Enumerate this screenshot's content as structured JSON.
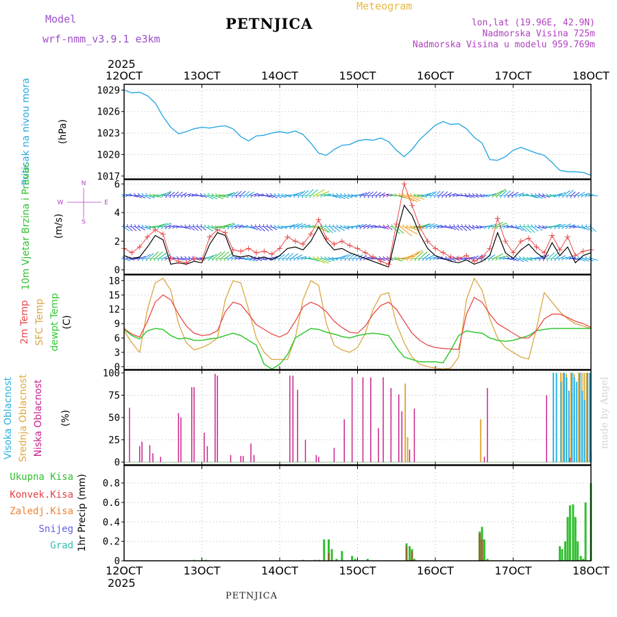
{
  "header": {
    "model_label": "Model",
    "model_name": "wrf-nmm_v3.9.1  e3km",
    "title": "PETNJICA",
    "meteogram_label": "Meteogram",
    "lonlat": "lon,lat (19.96E, 42.9N)",
    "altitude": "Nadmorska Visina 725m",
    "model_altitude": "Nadmorska Visina u modelu 959.769m"
  },
  "footer": {
    "station": "PETNJICA",
    "credit": "made by Angel"
  },
  "colors": {
    "pressure": "#2aa7e0",
    "temp": "#e84848",
    "sfc_temp": "#d9a640",
    "dewpt": "#30c830",
    "cloud_high": "#2ab0e0",
    "cloud_mid": "#e0a838",
    "cloud_low": "#c8208c",
    "precip_total": "#30c030",
    "precip_conv": "#e04040",
    "precip_freeze": "#f08030",
    "precip_snow": "#6060e0",
    "precip_hail": "#30c0b0",
    "grid": "#b0b0b0"
  },
  "chart_data": [
    {
      "type": "line",
      "name": "pressure",
      "ylabel": "Pritisak na nivou mora",
      "unit": "(hPa)",
      "ylim": [
        1016.6,
        1029.8
      ],
      "yticks": [
        1017,
        1020,
        1023,
        1026,
        1029
      ],
      "x_start_year": "2025",
      "xticks": [
        "12OCT",
        "13OCT",
        "14OCT",
        "15OCT",
        "16OCT",
        "17OCT",
        "18OCT"
      ],
      "xrange_days": [
        0,
        6
      ],
      "grid": true,
      "series": [
        {
          "name": "Pritisak na nivou mora",
          "color_key": "pressure",
          "x": [
            0,
            0.1,
            0.2,
            0.3,
            0.4,
            0.5,
            0.6,
            0.7,
            0.8,
            0.9,
            1.0,
            1.1,
            1.2,
            1.3,
            1.4,
            1.5,
            1.6,
            1.7,
            1.8,
            1.9,
            2.0,
            2.1,
            2.2,
            2.3,
            2.4,
            2.5,
            2.6,
            2.7,
            2.8,
            2.9,
            3.0,
            3.1,
            3.2,
            3.3,
            3.4,
            3.5,
            3.6,
            3.7,
            3.8,
            3.9,
            4.0,
            4.1,
            4.2,
            4.3,
            4.4,
            4.5,
            4.6,
            4.7,
            4.8,
            4.9,
            5.0,
            5.1,
            5.2,
            5.3,
            5.4,
            5.5,
            5.6,
            5.7,
            5.8,
            5.9,
            6.0
          ],
          "y": [
            1029.0,
            1028.6,
            1028.7,
            1028.2,
            1027.2,
            1025.3,
            1023.8,
            1022.9,
            1023.2,
            1023.6,
            1023.8,
            1023.7,
            1023.9,
            1024.0,
            1023.6,
            1022.5,
            1021.9,
            1022.6,
            1022.7,
            1023.0,
            1023.2,
            1023.0,
            1023.3,
            1022.8,
            1021.6,
            1020.2,
            1019.9,
            1020.7,
            1021.3,
            1021.4,
            1021.9,
            1022.1,
            1022.0,
            1022.3,
            1021.8,
            1020.6,
            1019.7,
            1020.7,
            1022.1,
            1023.1,
            1024.1,
            1024.6,
            1024.2,
            1024.3,
            1023.6,
            1022.4,
            1021.6,
            1019.3,
            1019.2,
            1019.7,
            1020.6,
            1021.0,
            1020.6,
            1020.2,
            1019.9,
            1018.9,
            1017.8,
            1017.6,
            1017.6,
            1017.5,
            1017.1
          ]
        }
      ]
    },
    {
      "type": "line",
      "name": "wind",
      "ylabel": "10m Vjetar Brzina i Pravac",
      "unit": "(m/s)",
      "compass_labels": [
        "N",
        "S",
        "W",
        "E"
      ],
      "ylim": [
        -0.3,
        6.3
      ],
      "yticks": [
        0,
        2,
        4,
        6
      ],
      "grid": true,
      "arrow_rows": [
        5.2,
        3.0,
        0.8
      ],
      "series": [
        {
          "name": "Brzina vjetra",
          "color": "#000000",
          "x": [
            0,
            0.1,
            0.2,
            0.3,
            0.4,
            0.5,
            0.6,
            0.7,
            0.8,
            0.9,
            1.0,
            1.1,
            1.2,
            1.3,
            1.4,
            1.5,
            1.6,
            1.7,
            1.8,
            1.9,
            2.0,
            2.1,
            2.2,
            2.3,
            2.4,
            2.5,
            2.6,
            2.7,
            2.8,
            2.9,
            3.0,
            3.1,
            3.2,
            3.3,
            3.4,
            3.5,
            3.6,
            3.7,
            3.8,
            3.9,
            4.0,
            4.1,
            4.2,
            4.3,
            4.4,
            4.5,
            4.6,
            4.7,
            4.8,
            4.9,
            5.0,
            5.1,
            5.2,
            5.3,
            5.4,
            5.5,
            5.6,
            5.7,
            5.8,
            5.9,
            6.0
          ],
          "y": [
            1.0,
            0.8,
            0.9,
            1.6,
            2.4,
            2.1,
            0.4,
            0.5,
            0.4,
            0.6,
            0.5,
            1.8,
            2.6,
            2.4,
            1.0,
            0.9,
            1.0,
            0.8,
            0.9,
            0.7,
            1.0,
            1.5,
            1.6,
            1.4,
            2.0,
            3.0,
            2.0,
            1.4,
            1.5,
            1.2,
            1.0,
            0.8,
            0.6,
            0.4,
            0.2,
            2.5,
            4.5,
            3.8,
            2.5,
            1.5,
            1.0,
            0.8,
            0.6,
            0.5,
            0.7,
            0.4,
            0.6,
            1.0,
            2.6,
            1.2,
            0.8,
            1.4,
            1.8,
            1.2,
            0.8,
            1.9,
            1.0,
            1.6,
            0.5,
            1.0,
            1.2
          ]
        },
        {
          "name": "Udari vjetra",
          "color": "#e84848",
          "x": [
            0,
            0.1,
            0.2,
            0.3,
            0.4,
            0.5,
            0.6,
            0.7,
            0.8,
            0.9,
            1.0,
            1.1,
            1.2,
            1.3,
            1.4,
            1.5,
            1.6,
            1.7,
            1.8,
            1.9,
            2.0,
            2.1,
            2.2,
            2.3,
            2.4,
            2.5,
            2.6,
            2.7,
            2.8,
            2.9,
            3.0,
            3.1,
            3.2,
            3.3,
            3.4,
            3.5,
            3.6,
            3.7,
            3.8,
            3.9,
            4.0,
            4.1,
            4.2,
            4.3,
            4.4,
            4.5,
            4.6,
            4.7,
            4.8,
            4.9,
            5.0,
            5.1,
            5.2,
            5.3,
            5.4,
            5.5,
            5.6,
            5.7,
            5.8,
            5.9,
            6.0
          ],
          "y": [
            1.5,
            1.2,
            1.6,
            2.3,
            2.8,
            2.5,
            0.8,
            0.6,
            0.5,
            0.8,
            0.7,
            2.3,
            2.8,
            2.6,
            1.4,
            1.3,
            1.5,
            1.2,
            1.3,
            1.1,
            1.5,
            2.3,
            2.0,
            1.8,
            2.5,
            3.5,
            2.2,
            1.8,
            2.0,
            1.7,
            1.5,
            1.2,
            0.9,
            0.6,
            0.4,
            3.2,
            6.0,
            4.5,
            3.0,
            2.0,
            1.5,
            1.2,
            0.9,
            0.8,
            1.0,
            0.6,
            0.9,
            1.5,
            3.6,
            2.0,
            1.2,
            2.0,
            2.2,
            1.6,
            1.2,
            2.4,
            1.4,
            2.3,
            1.0,
            1.3,
            1.4
          ]
        }
      ]
    },
    {
      "type": "line",
      "name": "temperature",
      "ylabel": "2m Temp / SFC Temp / dewpt Temp",
      "label_2m": "2m Temp",
      "label_sfc": "SFC Temp",
      "label_dewpt": "dewpt Temp",
      "unit": "(C)",
      "ylim": [
        -0.6,
        19.2
      ],
      "yticks": [
        0,
        3,
        6,
        9,
        12,
        15,
        18
      ],
      "grid": true,
      "series": [
        {
          "name": "2m Temp",
          "color_key": "temp",
          "x": [
            0,
            0.1,
            0.2,
            0.3,
            0.4,
            0.5,
            0.6,
            0.7,
            0.8,
            0.9,
            1.0,
            1.1,
            1.2,
            1.3,
            1.4,
            1.5,
            1.6,
            1.7,
            1.8,
            1.9,
            2.0,
            2.1,
            2.2,
            2.3,
            2.4,
            2.5,
            2.6,
            2.7,
            2.8,
            2.9,
            3.0,
            3.1,
            3.2,
            3.3,
            3.4,
            3.5,
            3.6,
            3.7,
            3.8,
            3.9,
            4.0,
            4.1,
            4.2,
            4.3,
            4.4,
            4.5,
            4.6,
            4.7,
            4.8,
            4.9,
            5.0,
            5.1,
            5.2,
            5.3,
            5.4,
            5.5,
            5.6,
            5.7,
            5.8,
            5.9,
            6.0
          ],
          "y": [
            8,
            6.8,
            6.2,
            9.5,
            13.5,
            15,
            14,
            11,
            8.5,
            7,
            6.5,
            6.7,
            7.5,
            11.5,
            13.5,
            13,
            11,
            8.8,
            7.8,
            6.8,
            6.2,
            7,
            9.5,
            12.5,
            13.5,
            12.8,
            11.5,
            9.5,
            8.2,
            7.2,
            7,
            8.5,
            11,
            12.8,
            13.5,
            12,
            9.5,
            7,
            5.5,
            4.5,
            4,
            3.8,
            3.7,
            3.6,
            11,
            14.5,
            13.5,
            11,
            9,
            8,
            7,
            6,
            6,
            7.5,
            10,
            11,
            11,
            10.3,
            9.5,
            9,
            8.2
          ]
        },
        {
          "name": "SFC Temp",
          "color_key": "sfc_temp",
          "x": [
            0,
            0.1,
            0.2,
            0.3,
            0.4,
            0.5,
            0.6,
            0.7,
            0.8,
            0.9,
            1.0,
            1.1,
            1.2,
            1.3,
            1.4,
            1.5,
            1.6,
            1.7,
            1.8,
            1.9,
            2.0,
            2.1,
            2.2,
            2.3,
            2.4,
            2.5,
            2.6,
            2.7,
            2.8,
            2.9,
            3.0,
            3.1,
            3.2,
            3.3,
            3.4,
            3.5,
            3.6,
            3.7,
            3.8,
            3.9,
            4.0,
            4.1,
            4.2,
            4.3,
            4.4,
            4.5,
            4.6,
            4.7,
            4.8,
            4.9,
            5.0,
            5.1,
            5.2,
            5.3,
            5.4,
            5.5,
            5.6,
            5.7,
            5.8,
            5.9,
            6.0
          ],
          "y": [
            7.5,
            5,
            3,
            12,
            17.5,
            18.5,
            16,
            9,
            5,
            3.5,
            4,
            4.8,
            6,
            14,
            18,
            17.5,
            12,
            6,
            3,
            1.5,
            1.5,
            1.5,
            6,
            14,
            18,
            17,
            9,
            4.5,
            3.5,
            3,
            4,
            7,
            12,
            15,
            15.5,
            9,
            5,
            2,
            0.5,
            0,
            -0.3,
            -0.5,
            -0.3,
            2,
            14,
            18.5,
            16,
            10,
            6,
            4,
            3,
            2,
            1.6,
            8,
            15.5,
            13.5,
            11.5,
            10,
            9,
            8.5,
            8
          ]
        },
        {
          "name": "dewpt Temp",
          "color_key": "dewpt",
          "x": [
            0,
            0.1,
            0.2,
            0.3,
            0.4,
            0.5,
            0.6,
            0.7,
            0.8,
            0.9,
            1.0,
            1.1,
            1.2,
            1.3,
            1.4,
            1.5,
            1.6,
            1.7,
            1.8,
            1.9,
            2.0,
            2.1,
            2.2,
            2.3,
            2.4,
            2.5,
            2.6,
            2.7,
            2.8,
            2.9,
            3.0,
            3.1,
            3.2,
            3.3,
            3.4,
            3.5,
            3.6,
            3.7,
            3.8,
            3.9,
            4.0,
            4.1,
            4.2,
            4.3,
            4.4,
            4.5,
            4.6,
            4.7,
            4.8,
            4.9,
            5.0,
            5.1,
            5.2,
            5.3,
            5.4,
            5.5,
            5.6,
            5.7,
            5.8,
            5.9,
            6.0
          ],
          "y": [
            7.8,
            6.5,
            5.8,
            7.5,
            8,
            7.8,
            6.5,
            5.8,
            6,
            5.5,
            5.5,
            5.8,
            6,
            6.5,
            7,
            6.5,
            5.5,
            4.5,
            0.5,
            -0.5,
            0.5,
            2.5,
            6,
            7,
            8,
            7.8,
            7.2,
            6.8,
            6.3,
            6,
            6.5,
            6.8,
            7,
            6.8,
            6.5,
            4,
            2,
            1.5,
            1,
            1,
            1,
            0.8,
            3.5,
            6.5,
            7.5,
            7.2,
            7,
            6,
            5.5,
            5.3,
            5.5,
            6,
            6.5,
            7.5,
            7.8,
            8,
            8,
            8,
            8,
            8,
            8
          ]
        }
      ]
    },
    {
      "type": "bar",
      "name": "clouds",
      "ylabel_high": "Visoka Oblacnost",
      "ylabel_mid": "Srednja Oblacnost",
      "ylabel_low": "Niska Oblacnost",
      "unit": "(%)",
      "ylim": [
        -3,
        103
      ],
      "yticks": [
        0,
        25,
        50,
        75,
        100
      ],
      "grid": true,
      "low": {
        "x": [
          0.07,
          0.2,
          0.23,
          0.33,
          0.37,
          0.47,
          0.7,
          0.73,
          0.87,
          0.9,
          1.03,
          1.07,
          1.17,
          1.2,
          1.37,
          1.5,
          1.53,
          1.63,
          1.67,
          2.13,
          2.17,
          2.23,
          2.33,
          2.47,
          2.5,
          2.7,
          2.83,
          2.93,
          3.07,
          3.17,
          3.27,
          3.33,
          3.43,
          3.53,
          3.57,
          3.67,
          3.73,
          4.63,
          4.67,
          5.43,
          5.73,
          6.0
        ],
        "y": [
          61,
          18,
          23,
          19,
          10,
          6,
          55,
          50,
          84,
          84,
          33,
          18,
          99,
          97,
          8,
          7,
          7,
          21,
          8,
          97,
          97,
          81,
          25,
          8,
          6,
          16,
          48,
          95,
          95,
          95,
          38,
          95,
          83,
          76,
          57,
          14,
          60,
          6,
          83,
          75,
          5,
          12
        ]
      },
      "mid": {
        "x": [
          3.6,
          3.63,
          4.57,
          5.6,
          5.63,
          5.67,
          5.73,
          5.77,
          5.83,
          5.87,
          5.9,
          5.93,
          5.97
        ],
        "y": [
          88,
          28,
          48,
          100,
          100,
          99,
          100,
          99,
          100,
          100,
          100,
          100,
          100
        ]
      },
      "high": {
        "x": [
          5.53,
          5.57,
          5.63,
          5.67,
          5.7,
          5.73,
          5.77,
          5.8,
          5.83,
          5.87,
          5.9,
          5.93,
          5.97,
          6.0
        ],
        "y": [
          100,
          100,
          90,
          100,
          95,
          80,
          100,
          95,
          90,
          100,
          80,
          70,
          100,
          100
        ]
      }
    },
    {
      "type": "bar",
      "name": "precipitation",
      "ylabel": "1hr Precip (mm)",
      "legend": [
        "Ukupna Kisa",
        "Konvek.Kisa",
        "Zaledj.Kisa",
        "Snijeg",
        "Grad"
      ],
      "ylim": [
        0,
        0.98
      ],
      "yticks": [
        0,
        0.2,
        0.4,
        0.6,
        0.8
      ],
      "grid": true,
      "total": {
        "x": [
          0.9,
          1.0,
          1.05,
          2.3,
          2.45,
          2.5,
          2.57,
          2.63,
          2.67,
          2.73,
          2.8,
          2.93,
          2.97,
          3.13,
          3.63,
          3.67,
          3.7,
          3.73,
          4.57,
          4.6,
          4.63,
          4.67,
          5.6,
          5.63,
          5.67,
          5.7,
          5.73,
          5.77,
          5.8,
          5.83,
          5.87,
          5.9,
          5.93,
          6.0
        ],
        "y": [
          0.01,
          0.01,
          0.01,
          0.01,
          0.01,
          0.01,
          0.22,
          0.22,
          0.12,
          0.02,
          0.1,
          0.05,
          0.02,
          0.02,
          0.18,
          0.15,
          0.12,
          0.02,
          0.3,
          0.35,
          0.22,
          0.02,
          0.15,
          0.12,
          0.2,
          0.45,
          0.57,
          0.58,
          0.45,
          0.2,
          0.05,
          0.02,
          0.6,
          0.8
        ]
      },
      "conv": {
        "x": [
          2.63,
          3.63,
          3.7,
          4.57,
          4.6,
          5.83
        ],
        "y": [
          0.08,
          0.15,
          0.1,
          0.28,
          0.22,
          0.01
        ]
      }
    }
  ]
}
